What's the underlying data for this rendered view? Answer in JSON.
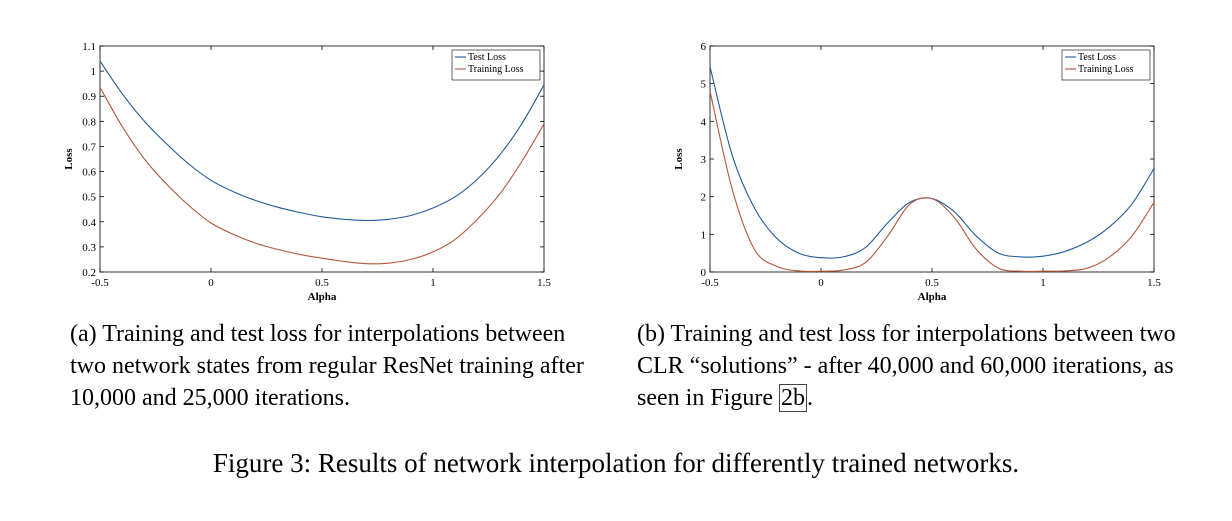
{
  "chart_data": [
    {
      "panel": "a",
      "type": "line",
      "xlabel": "Alpha",
      "ylabel": "Loss",
      "xlim": [
        -0.5,
        1.5
      ],
      "ylim": [
        0.2,
        1.1
      ],
      "xticks": [
        "-0.5",
        "0",
        "0.5",
        "1",
        "1.5"
      ],
      "yticks": [
        "0.2",
        "0.3",
        "0.4",
        "0.5",
        "0.6",
        "0.7",
        "0.8",
        "0.9",
        "1",
        "1.1"
      ],
      "legend_position": "top-right",
      "x": [
        -0.5,
        -0.4,
        -0.3,
        -0.2,
        -0.1,
        0.0,
        0.1,
        0.2,
        0.3,
        0.4,
        0.5,
        0.6,
        0.7,
        0.8,
        0.9,
        1.0,
        1.1,
        1.2,
        1.3,
        1.4,
        1.5
      ],
      "series": [
        {
          "name": "Test Loss",
          "color": "#1f5b9e",
          "values": [
            1.04,
            0.91,
            0.8,
            0.71,
            0.63,
            0.565,
            0.52,
            0.485,
            0.458,
            0.437,
            0.42,
            0.41,
            0.405,
            0.41,
            0.425,
            0.455,
            0.5,
            0.57,
            0.665,
            0.79,
            0.945
          ]
        },
        {
          "name": "Training Loss",
          "color": "#b5563a",
          "values": [
            0.935,
            0.78,
            0.65,
            0.55,
            0.465,
            0.395,
            0.35,
            0.315,
            0.29,
            0.27,
            0.255,
            0.242,
            0.233,
            0.235,
            0.25,
            0.28,
            0.33,
            0.41,
            0.51,
            0.64,
            0.79
          ]
        }
      ]
    },
    {
      "panel": "b",
      "type": "line",
      "xlabel": "Alpha",
      "ylabel": "Loss",
      "xlim": [
        -0.5,
        1.5
      ],
      "ylim": [
        0,
        6
      ],
      "xticks": [
        "-0.5",
        "0",
        "0.5",
        "1",
        "1.5"
      ],
      "yticks": [
        "0",
        "1",
        "2",
        "3",
        "4",
        "5",
        "6"
      ],
      "legend_position": "top-right",
      "x": [
        -0.5,
        -0.4,
        -0.3,
        -0.2,
        -0.1,
        0.0,
        0.1,
        0.2,
        0.3,
        0.4,
        0.5,
        0.6,
        0.7,
        0.8,
        0.9,
        1.0,
        1.1,
        1.2,
        1.3,
        1.4,
        1.5
      ],
      "series": [
        {
          "name": "Test Loss",
          "color": "#1f5b9e",
          "values": [
            5.45,
            3.1,
            1.7,
            0.9,
            0.5,
            0.38,
            0.4,
            0.65,
            1.3,
            1.85,
            1.95,
            1.6,
            0.95,
            0.5,
            0.4,
            0.42,
            0.55,
            0.8,
            1.2,
            1.8,
            2.75
          ]
        },
        {
          "name": "Training Loss",
          "color": "#b5563a",
          "values": [
            4.8,
            2.2,
            0.6,
            0.15,
            0.03,
            0.02,
            0.05,
            0.25,
            0.95,
            1.8,
            1.95,
            1.45,
            0.6,
            0.1,
            0.02,
            0.02,
            0.03,
            0.1,
            0.4,
            0.95,
            1.85
          ]
        }
      ]
    }
  ],
  "captions": {
    "a": "(a) Training and test loss for interpolations between two network states from regular ResNet training after 10,000 and 25,000 iterations.",
    "b_main": "(b) Training and test loss for interpolations between two CLR “solutions” - after 40,000 and 60,000 iterations, as seen in Figure ",
    "b_ref": "2b",
    "b_end": ".",
    "figure": "Figure 3: Results of network interpolation for differently trained networks."
  }
}
